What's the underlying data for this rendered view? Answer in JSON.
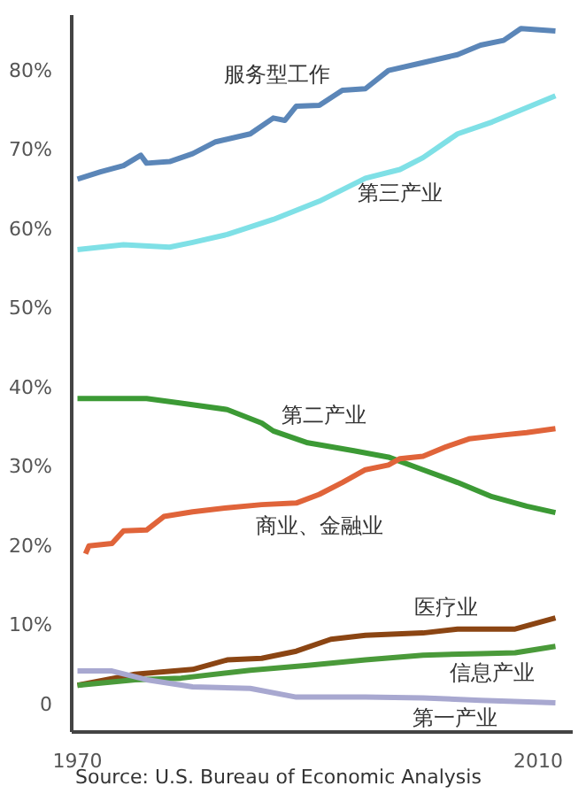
{
  "chart_data": {
    "type": "line",
    "xlim": [
      1969.5,
      2013
    ],
    "xticks": [
      1970,
      2010
    ],
    "ylim": [
      -3.5,
      87
    ],
    "yticks": [
      {
        "value": 0,
        "label": "0"
      },
      {
        "value": 10,
        "label": "10%"
      },
      {
        "value": 20,
        "label": "20%"
      },
      {
        "value": 30,
        "label": "30%"
      },
      {
        "value": 40,
        "label": "40%"
      },
      {
        "value": 50,
        "label": "50%"
      },
      {
        "value": 60,
        "label": "60%"
      },
      {
        "value": 70,
        "label": "70%"
      },
      {
        "value": 80,
        "label": "80%"
      }
    ],
    "grid": false,
    "marker": "none",
    "line_style": "solid",
    "annotations": [
      "Source: U.S. Bureau of Economic Analysis"
    ],
    "series": [
      {
        "name": "服务型工作",
        "color": "#5b86b8",
        "x": [
          1970,
          1972,
          1974,
          1975.5,
          1976,
          1978,
          1980,
          1982,
          1985,
          1987,
          1988,
          1989,
          1991,
          1993,
          1995,
          1997,
          2000,
          2003,
          2005,
          2007,
          2008.5,
          2011.5
        ],
        "values": [
          66.3,
          67.2,
          68,
          69.3,
          68.3,
          68.5,
          69.5,
          71,
          72,
          74,
          73.7,
          75.5,
          75.6,
          77.5,
          77.7,
          80,
          81,
          82,
          83.2,
          83.8,
          85.3,
          85
        ]
      },
      {
        "name": "第三产业",
        "color": "#7fe0e6",
        "x": [
          1970,
          1974,
          1978,
          1980,
          1983,
          1987,
          1991,
          1995,
          1998,
          2000,
          2003,
          2006,
          2011.5
        ],
        "values": [
          57.4,
          58,
          57.7,
          58.3,
          59.3,
          61.2,
          63.5,
          66.4,
          67.5,
          69,
          72,
          73.5,
          76.8
        ]
      },
      {
        "name": "第二产业",
        "color": "#3c9a35",
        "x": [
          1970,
          1976,
          1979,
          1983,
          1986,
          1987,
          1990,
          1994,
          1997,
          2000,
          2003,
          2006,
          2009,
          2011.5
        ],
        "values": [
          38.6,
          38.6,
          38,
          37.2,
          35.5,
          34.5,
          33,
          32,
          31.2,
          29.6,
          28,
          26.2,
          25,
          24.2
        ]
      },
      {
        "name": "商业、金融业",
        "color": "#e0643a",
        "x": [
          1970.7,
          1971,
          1973,
          1974,
          1976,
          1977.5,
          1980,
          1983,
          1986,
          1989,
          1991,
          1993,
          1995,
          1997,
          1998,
          2000,
          2002,
          2004,
          2007,
          2009,
          2011.5
        ],
        "values": [
          19,
          20,
          20.3,
          21.9,
          22,
          23.7,
          24.3,
          24.8,
          25.2,
          25.4,
          26.5,
          28,
          29.6,
          30.2,
          31,
          31.3,
          32.5,
          33.5,
          34,
          34.3,
          34.8
        ]
      },
      {
        "name": "医疗业",
        "color": "#8b4513",
        "x": [
          1970,
          1975,
          1980,
          1983,
          1986,
          1989,
          1992,
          1995,
          2000,
          2003,
          2008,
          2011.5
        ],
        "values": [
          2.4,
          3.8,
          4.4,
          5.6,
          5.8,
          6.7,
          8.2,
          8.7,
          9,
          9.5,
          9.5,
          10.9
        ]
      },
      {
        "name": "信息产业",
        "color": "#4a9a3a",
        "x": [
          1970,
          1975,
          1979,
          1985,
          1990,
          1995,
          2000,
          2005,
          2008,
          2011.5
        ],
        "values": [
          2.4,
          3.1,
          3.3,
          4.3,
          4.9,
          5.6,
          6.2,
          6.4,
          6.5,
          7.3
        ]
      },
      {
        "name": "第一产业",
        "color": "#a8a8d0",
        "x": [
          1970,
          1973,
          1976,
          1980,
          1985,
          1989,
          1995,
          2000,
          2005,
          2011.5
        ],
        "values": [
          4.2,
          4.2,
          3.1,
          2.2,
          2,
          0.9,
          0.9,
          0.8,
          0.5,
          0.2
        ]
      }
    ]
  }
}
